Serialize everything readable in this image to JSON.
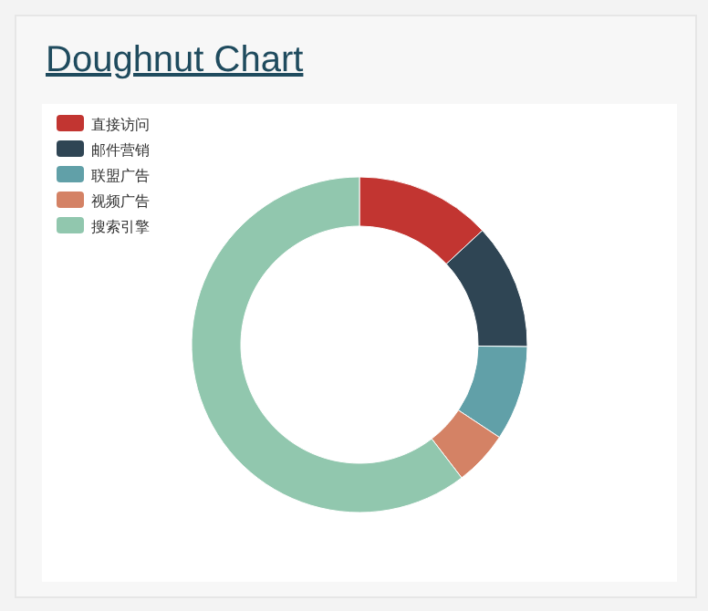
{
  "chart_data": {
    "type": "donut",
    "title": "Doughnut Chart",
    "categories": [
      "直接访问",
      "邮件营销",
      "联盟广告",
      "视频广告",
      "搜索引擎"
    ],
    "values": [
      13.08,
      12.1,
      9.13,
      5.27,
      60.42
    ],
    "colors": [
      "#c23531",
      "#2f4554",
      "#61a0a8",
      "#d48265",
      "#91c7ae"
    ],
    "legend": "top left"
  }
}
